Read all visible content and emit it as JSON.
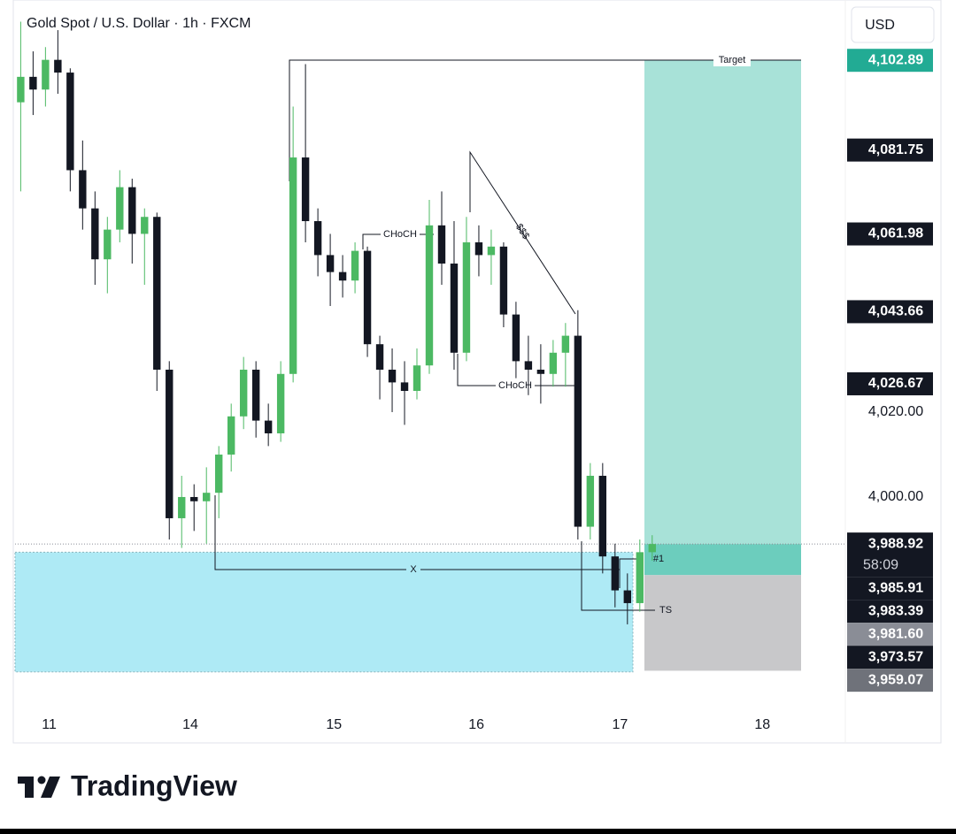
{
  "header": {
    "symbol": "Gold Spot / U.S. Dollar · 1h · FXCM",
    "currency": "USD"
  },
  "chart_data": {
    "type": "candlestick",
    "x": [
      0,
      1,
      2,
      3,
      4,
      5,
      6,
      7,
      8,
      9,
      10,
      11,
      12,
      13,
      14,
      15,
      16,
      17,
      18,
      19,
      20,
      21,
      22,
      23,
      24,
      25,
      26,
      27,
      28,
      29,
      30,
      31,
      32,
      33,
      34,
      35,
      36,
      37,
      38,
      39,
      40,
      41,
      42,
      43,
      44,
      45,
      46,
      47,
      48,
      49,
      50,
      51
    ],
    "open": [
      4093,
      4099,
      4096,
      4103,
      4100,
      4077,
      4068,
      4056,
      4063,
      4073,
      4062,
      4066,
      4030,
      3995,
      4000,
      3999,
      4001,
      4010,
      4019,
      4030,
      4018,
      4015,
      4029,
      4080,
      4065,
      4057,
      4053,
      4051,
      4058,
      4036,
      4030,
      4027,
      4025,
      4031,
      4064,
      4055,
      4034,
      4060,
      4057,
      4059,
      4043,
      4032,
      4030,
      4029,
      4034,
      4038,
      3993,
      4005,
      3986,
      3978,
      3975,
      3987
    ],
    "high": [
      4112,
      4105,
      4106,
      4110,
      4101,
      4084,
      4072,
      4066,
      4077,
      4075,
      4068,
      4067,
      4032,
      4005,
      4003,
      4007,
      4012,
      4022,
      4033,
      4032,
      4022,
      4032,
      4092,
      4102,
      4068,
      4062,
      4057,
      4060,
      4059,
      4038,
      4035,
      4032,
      4035,
      4070,
      4072,
      4065,
      4066,
      4064,
      4063,
      4060,
      4046,
      4038,
      4036,
      4037,
      4041,
      4044,
      4008,
      4008,
      3989,
      3982,
      3990,
      3991
    ],
    "low": [
      4072,
      4090,
      4092,
      4095,
      4072,
      4063,
      4050,
      4048,
      4060,
      4055,
      4050,
      4025,
      3990,
      3988,
      3992,
      3989,
      3995,
      4006,
      4016,
      4014,
      4012,
      4013,
      4027,
      4060,
      4052,
      4045,
      4047,
      4048,
      4033,
      4023,
      4020,
      4017,
      4023,
      4029,
      4050,
      4030,
      4032,
      4052,
      4050,
      4040,
      4028,
      4024,
      4022,
      4026,
      4026,
      3990,
      3990,
      3982,
      3974,
      3970,
      3973,
      3985
    ],
    "close": [
      4099,
      4096,
      4103,
      4100,
      4077,
      4068,
      4056,
      4063,
      4073,
      4062,
      4066,
      4030,
      3995,
      4000,
      3999,
      4001,
      4010,
      4019,
      4030,
      4018,
      4015,
      4029,
      4080,
      4065,
      4057,
      4053,
      4051,
      4058,
      4036,
      4030,
      4027,
      4025,
      4031,
      4064,
      4055,
      4034,
      4060,
      4057,
      4059,
      4043,
      4032,
      4030,
      4029,
      4034,
      4038,
      3993,
      4005,
      3986,
      3978,
      3975,
      3987,
      3988.92
    ],
    "up_color": "#4cb963",
    "down_color": "#131722",
    "xlim": [
      -0.6,
      66.6
    ],
    "ylim": [
      3950.4,
      4117.1
    ],
    "xticks": [
      {
        "value": 2.3,
        "label": "11"
      },
      {
        "value": 13.7,
        "label": "14"
      },
      {
        "value": 25.3,
        "label": "15"
      },
      {
        "value": 36.8,
        "label": "16"
      },
      {
        "value": 48.4,
        "label": "17"
      },
      {
        "value": 59.9,
        "label": "18"
      }
    ],
    "yticks": [
      {
        "value": 4020,
        "label": "4,020.00"
      },
      {
        "value": 4000,
        "label": "4,000.00"
      }
    ],
    "price_labels": [
      {
        "value": 4102.89,
        "label": "4,102.89",
        "color": "#22ab94"
      },
      {
        "value": 4081.75,
        "label": "4,081.75",
        "color": "#131722"
      },
      {
        "value": 4061.98,
        "label": "4,061.98",
        "color": "#131722"
      },
      {
        "value": 4043.66,
        "label": "4,043.66",
        "color": "#131722"
      },
      {
        "value": 4026.67,
        "label": "4,026.67",
        "color": "#131722"
      },
      {
        "value": 3988.92,
        "label": "3,988.92",
        "sublabel": "58:09",
        "color": "#131722"
      },
      {
        "value": 3985.91,
        "label": "3,985.91",
        "color": "#131722"
      },
      {
        "value": 3983.39,
        "label": "3,983.39",
        "color": "#131722"
      },
      {
        "value": 3981.6,
        "label": "3,981.60",
        "color": "#8a8d96"
      },
      {
        "value": 3973.57,
        "label": "3,973.57",
        "color": "#131722"
      },
      {
        "value": 3959.07,
        "label": "3,959.07",
        "color": "#6f727a"
      }
    ],
    "demand_zone": [
      3958.8,
      3987.0
    ],
    "demand_color": "#aeeaf5",
    "annotations": [
      "Target",
      "CHoCH",
      "CHoCH",
      "$$$",
      "X",
      "TS",
      "#1"
    ]
  },
  "footer": {
    "brand": "TradingView"
  }
}
